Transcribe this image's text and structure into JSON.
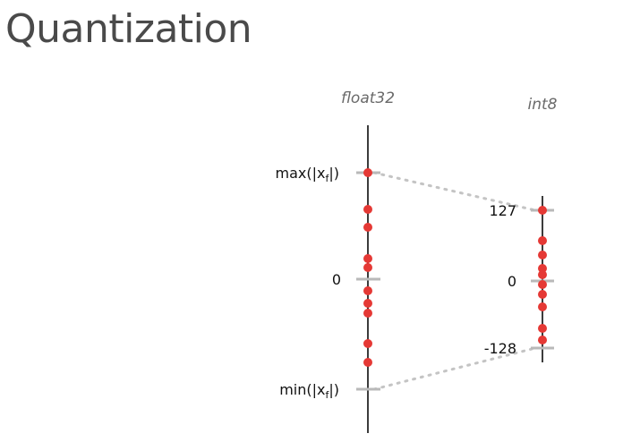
{
  "title": "Quantization",
  "left_axis": {
    "label": "float32",
    "max_label_pre": "max(|x",
    "max_label_sub": "f",
    "max_label_post": "|)",
    "zero_label": "0",
    "min_label_pre": "min(|x",
    "min_label_sub": "f",
    "min_label_post": "|)"
  },
  "right_axis": {
    "label": "int8",
    "max_label": "127",
    "zero_label": "0",
    "min_label": "-128"
  },
  "colors": {
    "dot": "#e53935",
    "axis": "#3c3c3c",
    "tick": "#b9b9b9",
    "connector": "#c4c4c4"
  }
}
